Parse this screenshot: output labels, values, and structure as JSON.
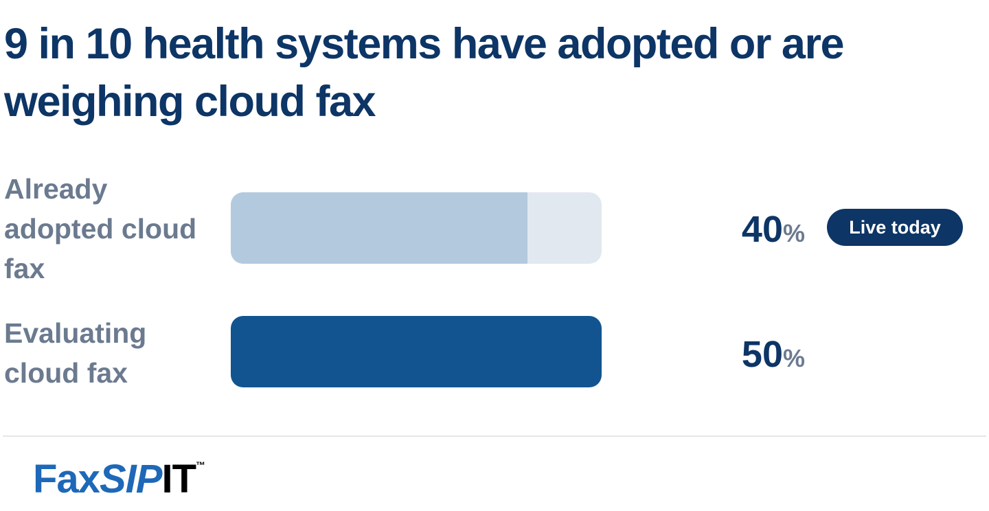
{
  "chart_data": {
    "type": "bar",
    "title": "9 in 10 health systems have adopted or are weighing cloud fax",
    "categories": [
      "Already adopted cloud fax",
      "Evaluating cloud fax"
    ],
    "values": [
      40,
      50
    ],
    "unit": "%",
    "value_labels": [
      "40",
      "50"
    ],
    "xlim": [
      0,
      50
    ],
    "bar_colors": [
      "#b3c9de",
      "#12548f"
    ],
    "track_color": "#e2e8f0",
    "annotations": [
      {
        "category": "Already adopted cloud fax",
        "text": "Live today"
      }
    ]
  },
  "logo": {
    "part1": "Fax",
    "part2": "SIP",
    "part3": "IT",
    "trademark": "™"
  },
  "colors": {
    "title": "#0d3566",
    "label": "#6b7a8f",
    "badge_bg": "#0d3566",
    "logo_blue": "#1e68b8"
  }
}
